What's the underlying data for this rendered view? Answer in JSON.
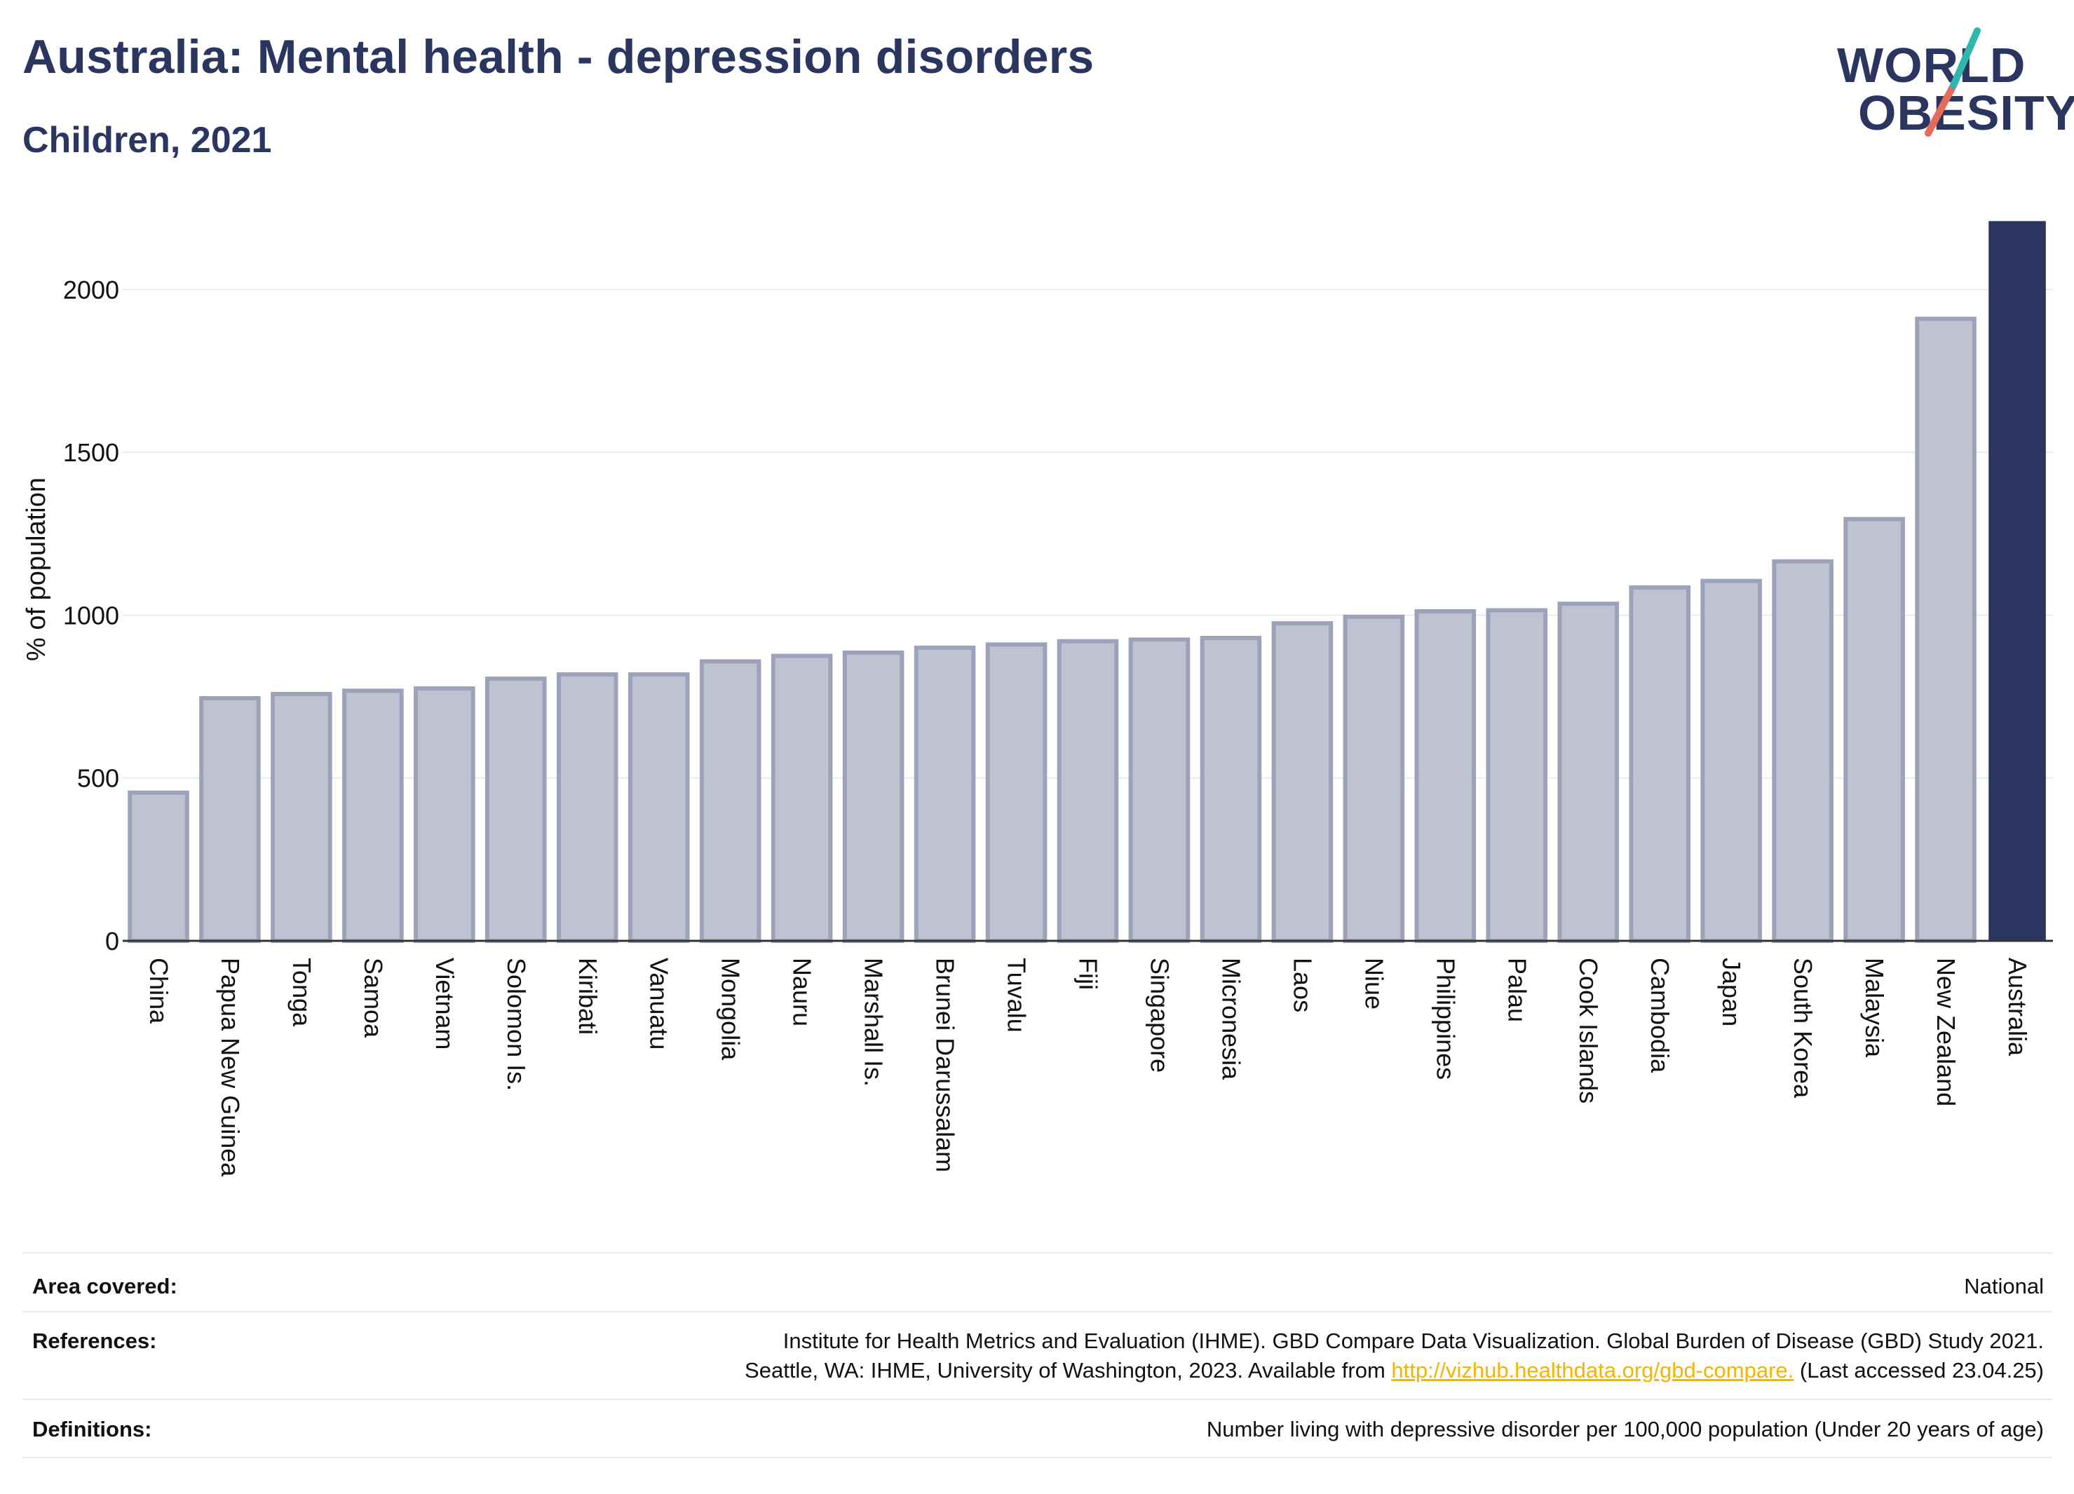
{
  "title": "Australia: Mental health - depression disorders",
  "subtitle": "Children, 2021",
  "logo": {
    "line1": "WORLD",
    "line2": "OBESITY"
  },
  "colors": {
    "bar": "#bfc3d1",
    "bar_border": "#9ca3b9",
    "highlight": "#2b3660",
    "gridline": "#e8eaf0",
    "logo_teal": "#2fb6ad",
    "logo_coral": "#e66b5b"
  },
  "chart_data": {
    "type": "bar",
    "title": "Australia: Mental health - depression disorders",
    "subtitle": "Children, 2021",
    "xlabel": "",
    "ylabel": "% of population",
    "ylim": [
      0,
      2200
    ],
    "yticks": [
      0,
      500,
      1000,
      1500,
      2000
    ],
    "grid": true,
    "highlight_category": "Australia",
    "categories": [
      "China",
      "Papua New Guinea",
      "Tonga",
      "Samoa",
      "Vietnam",
      "Solomon Is.",
      "Kiribati",
      "Vanuatu",
      "Mongolia",
      "Nauru",
      "Marshall Is.",
      "Brunei Darussalam",
      "Tuvalu",
      "Fiji",
      "Singapore",
      "Micronesia",
      "Laos",
      "Niue",
      "Philippines",
      "Palau",
      "Cook Islands",
      "Cambodia",
      "Japan",
      "South Korea",
      "Malaysia",
      "New Zealand",
      "Australia"
    ],
    "values": [
      455,
      745,
      758,
      768,
      775,
      805,
      818,
      818,
      858,
      875,
      885,
      900,
      910,
      920,
      925,
      930,
      975,
      995,
      1012,
      1015,
      1035,
      1085,
      1105,
      1165,
      1295,
      1910,
      2210
    ]
  },
  "footer": {
    "area_label": "Area covered:",
    "area_value": "National",
    "references_label": "References:",
    "references_line1": "Institute for Health Metrics and Evaluation (IHME). GBD Compare Data Visualization. Global Burden of Disease (GBD) Study 2021.",
    "references_line2_pre": "Seattle, WA: IHME, University of Washington, 2023. Available from ",
    "references_link": "http://vizhub.healthdata.org/gbd-compare.",
    "references_line2_post": " (Last accessed 23.04.25)",
    "definitions_label": "Definitions:",
    "definitions_value": "Number living with depressive disorder per 100,000 population (Under 20 years of age)"
  }
}
